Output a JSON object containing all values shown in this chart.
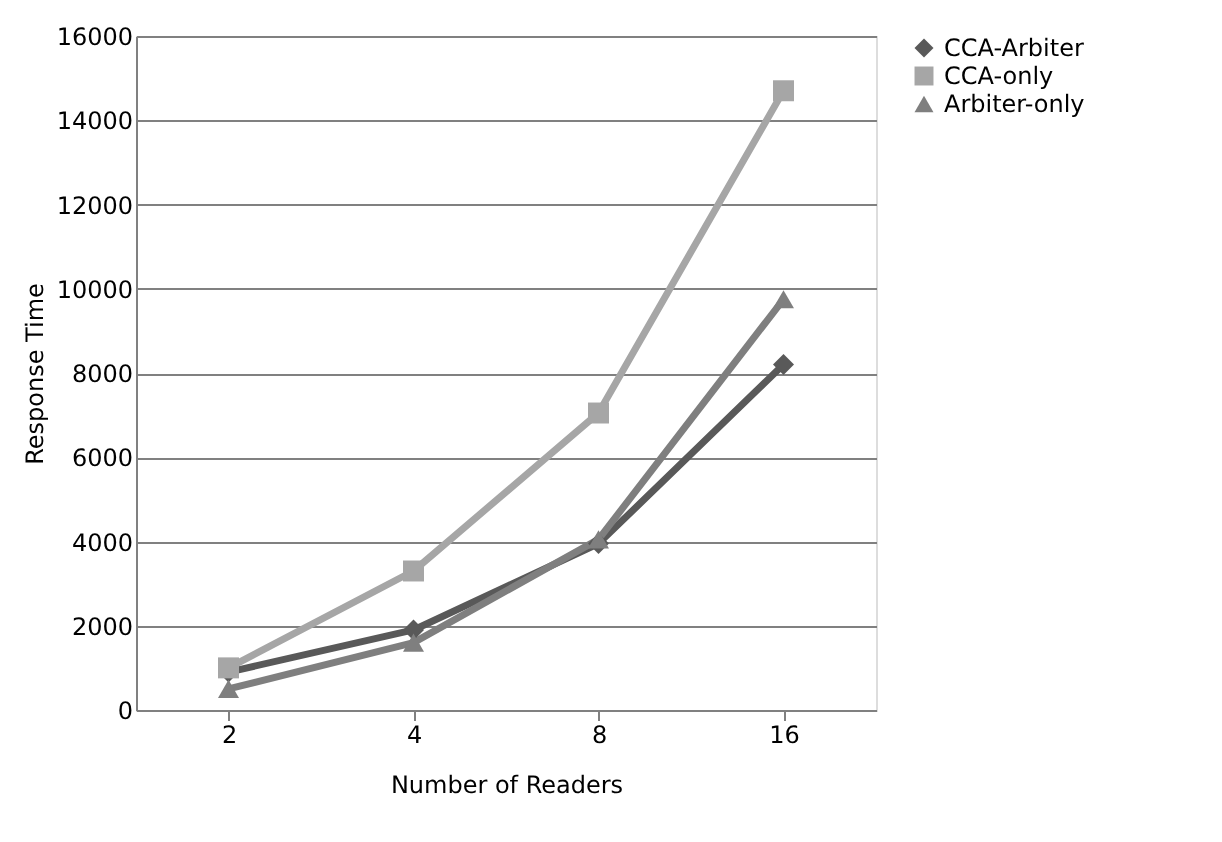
{
  "chart_data": {
    "type": "line",
    "xlabel": "Number of Readers",
    "ylabel": "Response Time",
    "categories": [
      "2",
      "4",
      "8",
      "16"
    ],
    "series": [
      {
        "name": "CCA-Arbiter",
        "color": "#595959",
        "marker": "diamond",
        "values": [
          900,
          1900,
          3950,
          8200
        ]
      },
      {
        "name": "CCA-only",
        "color": "#a6a6a6",
        "marker": "square",
        "values": [
          1000,
          3300,
          7050,
          14700
        ]
      },
      {
        "name": "Arbiter-only",
        "color": "#7f7f7f",
        "marker": "triangle",
        "values": [
          500,
          1600,
          4050,
          9750
        ]
      }
    ],
    "ylim": [
      0,
      16000
    ],
    "yticks": [
      0,
      2000,
      4000,
      6000,
      8000,
      10000,
      12000,
      14000,
      16000
    ],
    "grid": "y",
    "legend": "right",
    "line_style": "solid"
  }
}
